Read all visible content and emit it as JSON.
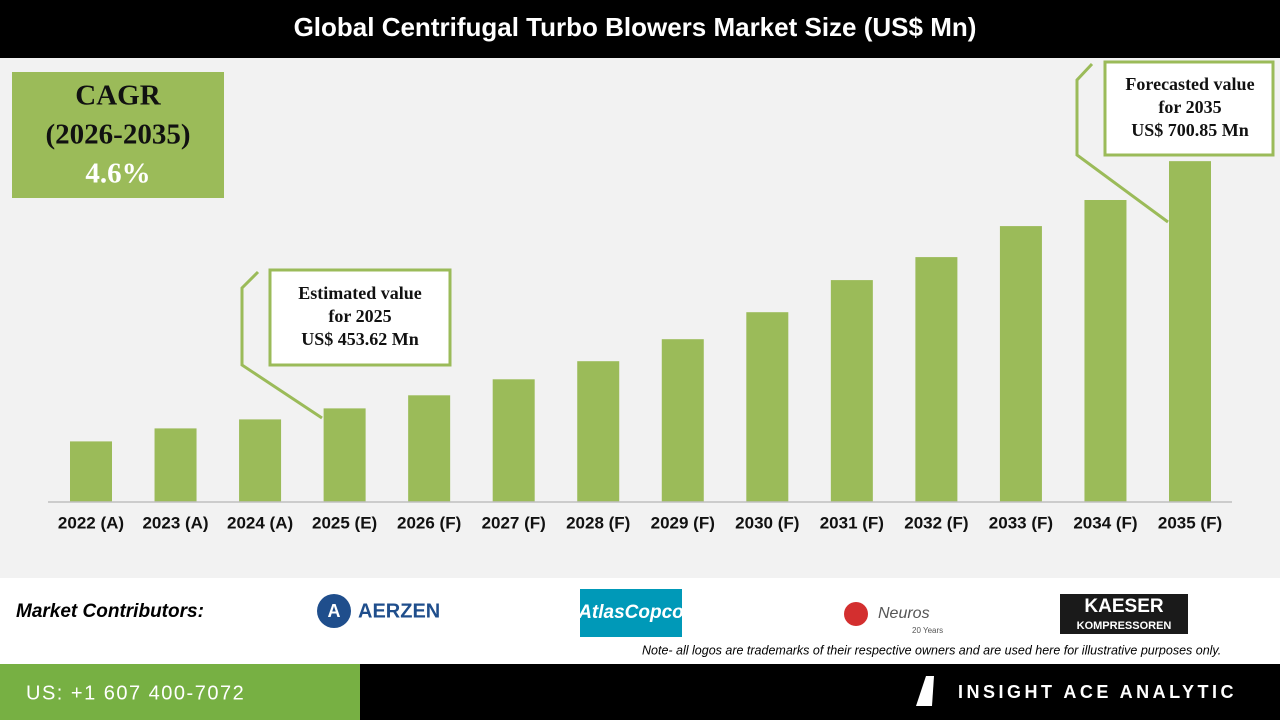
{
  "chart_data": {
    "type": "bar",
    "title": "Global Centrifugal Turbo Blowers Market Size (US$ Mn)",
    "categories": [
      "2022 (A)",
      "2023 (A)",
      "2024 (A)",
      "2025 (E)",
      "2026 (F)",
      "2027 (F)",
      "2028 (F)",
      "2029 (F)",
      "2030 (F)",
      "2031 (F)",
      "2032 (F)",
      "2033 (F)",
      "2034 (F)",
      "2035 (F)"
    ],
    "values": [
      420.6,
      433.6,
      442.6,
      453.62,
      466.7,
      482.7,
      500.8,
      522.8,
      549.8,
      581.9,
      604.9,
      635.9,
      662.0,
      700.85
    ],
    "color": "#9bbb59",
    "ylim": [
      360,
      720
    ],
    "cagr": [
      "CAGR",
      "(2026-2035)",
      "4.6%"
    ],
    "annotations": [
      {
        "lines": [
          "Estimated value",
          "for 2025",
          "US$ 453.62 Mn"
        ]
      },
      {
        "lines": [
          "Forecasted value",
          "for 2035",
          "US$ 700.85 Mn"
        ]
      }
    ]
  },
  "footer": {
    "contributors_label": "Market Contributors:",
    "logos": [
      "AERZEN",
      "AtlasCopco",
      "Neuros",
      "20 Years",
      "KAESER",
      "KOMPRESSOREN"
    ],
    "note": "Note- all logos are trademarks of their respective owners and are used here for illustrative purposes only.",
    "phone": "US: +1 607 400-7072",
    "brand": "INSIGHT ACE ANALYTIC"
  }
}
